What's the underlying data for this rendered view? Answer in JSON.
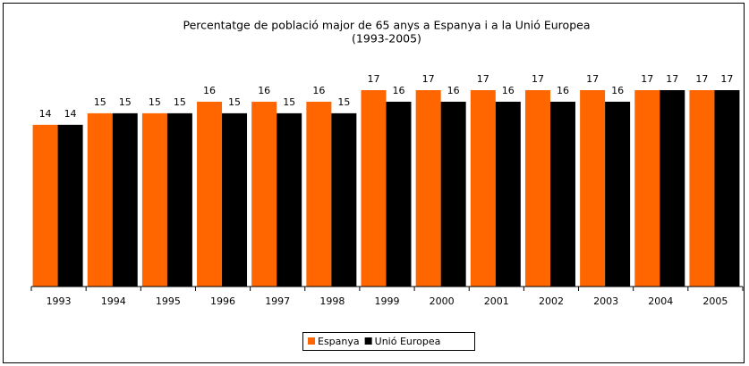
{
  "chart_data": {
    "type": "bar",
    "title": "Percentatge de població major de 65 anys a Espanya i a la Unió Europea",
    "subtitle": "(1993-2005)",
    "categories": [
      "1993",
      "1994",
      "1995",
      "1996",
      "1997",
      "1998",
      "1999",
      "2000",
      "2001",
      "2002",
      "2003",
      "2004",
      "2005"
    ],
    "series": [
      {
        "name": "Espanya",
        "color": "#ff6600",
        "values": [
          14,
          15,
          15,
          16,
          16,
          16,
          17,
          17,
          17,
          17,
          17,
          17,
          17
        ]
      },
      {
        "name": "Unió Europea",
        "color": "#000000",
        "values": [
          14,
          15,
          15,
          15,
          15,
          15,
          16,
          16,
          16,
          16,
          16,
          17,
          17
        ]
      }
    ],
    "ylim": [
      0,
      17
    ],
    "legend": "bottom"
  }
}
